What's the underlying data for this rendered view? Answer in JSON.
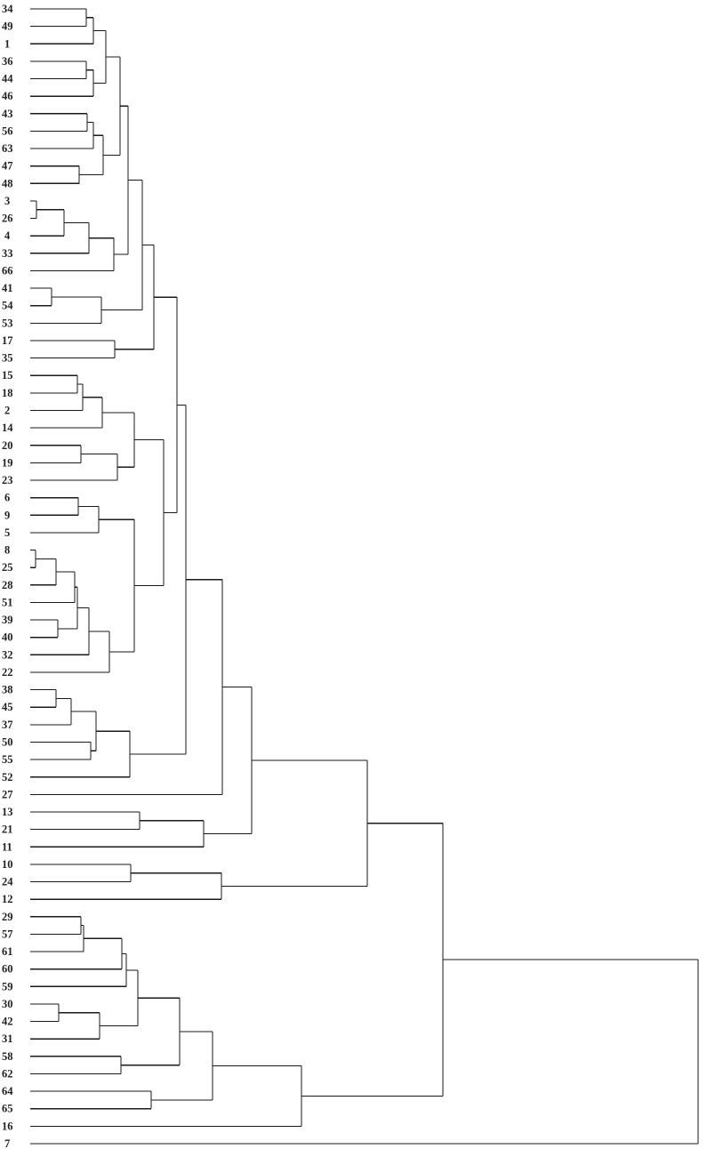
{
  "chart_data": {
    "type": "dendrogram",
    "orientation": "leaves-left, root-right",
    "title": "",
    "xlabel": "",
    "ylabel": "",
    "axis_visible": false,
    "grid": false,
    "height_range": [
      0,
      25
    ],
    "line_color": "#1a1a1a",
    "leaves": [
      "34",
      "49",
      "1",
      "36",
      "44",
      "46",
      "43",
      "56",
      "63",
      "47",
      "48",
      "3",
      "26",
      "4",
      "33",
      "66",
      "41",
      "54",
      "53",
      "17",
      "35",
      "15",
      "18",
      "2",
      "14",
      "20",
      "19",
      "23",
      "6",
      "9",
      "5",
      "8",
      "25",
      "28",
      "51",
      "39",
      "40",
      "32",
      "22",
      "38",
      "45",
      "37",
      "50",
      "55",
      "52",
      "27",
      "13",
      "21",
      "11",
      "10",
      "24",
      "12",
      "29",
      "57",
      "61",
      "60",
      "59",
      "30",
      "42",
      "31",
      "58",
      "62",
      "64",
      "65",
      "16",
      "7"
    ],
    "tree": [
      25,
      [
        15.45,
        [
          12.62,
          [
            8.29,
            [
              7.19,
              [
                5.83,
                [
                  5.49,
                  [
                    4.63,
                    [
                      4.19,
                      [
                        3.66,
                        [
                          3.36,
                          [
                            2.83,
                            [
                              2.36,
                              [
                                2.1,
                                "34",
                                "49"
                              ],
                              "1"
                            ],
                            [
                              2.36,
                              [
                                2.1,
                                "36",
                                "44"
                              ],
                              "46"
                            ]
                          ],
                          [
                            2.73,
                            [
                              2.36,
                              [
                                2.13,
                                "43",
                                "56"
                              ],
                              "63"
                            ],
                            [
                              1.83,
                              "47",
                              "48"
                            ]
                          ]
                        ],
                        [
                          3.13,
                          [
                            2.2,
                            [
                              1.26,
                              [
                                0.23,
                                "3",
                                "26"
                              ],
                              "4"
                            ],
                            "33"
                          ],
                          "66"
                        ]
                      ],
                      [
                        2.66,
                        [
                          0.8,
                          "41",
                          "54"
                        ],
                        "53"
                      ]
                    ],
                    [
                      3.16,
                      "17",
                      "35"
                    ]
                  ],
                  [
                    4.99,
                    [
                      3.89,
                      [
                        2.7,
                        [
                          1.96,
                          [
                            1.76,
                            "15",
                            "18"
                          ],
                          "2"
                        ],
                        "14"
                      ],
                      [
                        3.26,
                        [
                          1.9,
                          "20",
                          "19"
                        ],
                        "23"
                      ]
                    ],
                    [
                      3.89,
                      [
                        2.56,
                        [
                          1.8,
                          "6",
                          "9"
                        ],
                        "5"
                      ],
                      [
                        2.96,
                        [
                          2.2,
                          [
                            1.76,
                            [
                              1.66,
                              [
                                0.97,
                                [
                                  0.2,
                                  "8",
                                  "25"
                                ],
                                "28"
                              ],
                              "51"
                            ],
                            [
                              1.03,
                              "39",
                              "40"
                            ]
                          ],
                          "32"
                        ],
                        "22"
                      ]
                    ]
                  ]
                ],
                [
                  3.73,
                  [
                    2.46,
                    [
                      1.53,
                      [
                        0.97,
                        "38",
                        "45"
                      ],
                      "37"
                    ],
                    [
                      2.26,
                      "50",
                      "55"
                    ]
                  ],
                  "52"
                ]
              ],
              "27"
            ],
            [
              6.49,
              [
                4.09,
                "13",
                "21"
              ],
              "11"
            ]
          ],
          [
            7.16,
            [
              3.76,
              "10",
              "24"
            ],
            "12"
          ]
        ],
        [
          10.15,
          [
            6.82,
            [
              5.59,
              [
                4.03,
                [
                  3.6,
                  [
                    3.43,
                    [
                      2.0,
                      [
                        1.9,
                        "29",
                        "57"
                      ],
                      "61"
                    ],
                    "60"
                  ],
                  "59"
                ],
                [
                  2.6,
                  [
                    1.07,
                    "30",
                    "42"
                  ],
                  "31"
                ]
              ],
              [
                3.4,
                "58",
                "62"
              ]
            ],
            [
              4.53,
              "64",
              "65"
            ]
          ],
          "16"
        ]
      ],
      "7"
    ]
  }
}
